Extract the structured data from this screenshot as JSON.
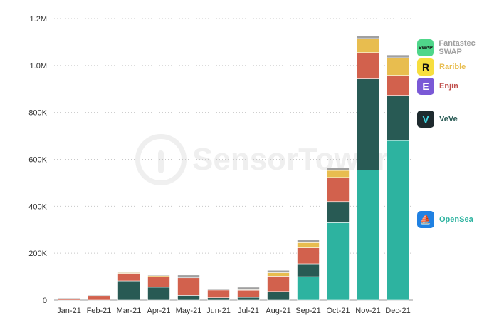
{
  "watermark": "SensorTower",
  "chart_data": {
    "type": "bar",
    "stacked": true,
    "categories": [
      "Jan-21",
      "Feb-21",
      "Mar-21",
      "Apr-21",
      "May-21",
      "Jun-21",
      "Jul-21",
      "Aug-21",
      "Sep-21",
      "Oct-21",
      "Nov-21",
      "Dec-21"
    ],
    "ylim": [
      0,
      1200000
    ],
    "yticks": [
      0,
      200000,
      400000,
      600000,
      800000,
      1000000,
      1200000
    ],
    "ytick_labels": [
      "0",
      "200K",
      "400K",
      "600K",
      "800K",
      "1.0M",
      "1.2M"
    ],
    "grid": true,
    "legend_position": "right",
    "series": [
      {
        "name": "OpenSea",
        "color": "#2db3a0",
        "icon": "opensea-icon",
        "values": [
          0,
          0,
          0,
          0,
          0,
          0,
          0,
          0,
          100000,
          330000,
          555000,
          680000
        ]
      },
      {
        "name": "VeVe",
        "color": "#285a54",
        "icon": "veve-icon",
        "values": [
          0,
          0,
          82000,
          55000,
          20000,
          10000,
          12000,
          37000,
          55000,
          90000,
          388000,
          193000
        ]
      },
      {
        "name": "Enjin",
        "color": "#d2614d",
        "icon": "enjin-icon",
        "values": [
          8000,
          20000,
          32000,
          45000,
          75000,
          33000,
          30000,
          65000,
          68000,
          103000,
          112000,
          85000
        ]
      },
      {
        "name": "Rarible",
        "color": "#e8bd4f",
        "icon": "rarible-icon",
        "values": [
          0,
          0,
          4000,
          4000,
          0,
          0,
          5000,
          15000,
          22000,
          30000,
          60000,
          75000
        ]
      },
      {
        "name": "Fantastec SWAP",
        "color": "#a0a0a0",
        "icon": "swap-icon",
        "values": [
          2000,
          2000,
          2000,
          5000,
          12000,
          5000,
          8000,
          10000,
          12000,
          10000,
          10000,
          12000
        ]
      }
    ]
  },
  "legend": [
    {
      "label": "Fantastec SWAP",
      "color": "#a0a0a0",
      "icon_text": "SWAP",
      "icon_bg": "#4fd68a",
      "icon_name": "swap-icon"
    },
    {
      "label": "Rarible",
      "color": "#e8bd4f",
      "icon_text": "R",
      "icon_bg": "#f7de3e",
      "icon_name": "rarible-icon"
    },
    {
      "label": "Enjin",
      "color": "#c0504d",
      "icon_text": "E",
      "icon_bg": "#7a59d6",
      "icon_name": "enjin-icon"
    },
    {
      "label": "VeVe",
      "color": "#285a54",
      "icon_text": "V",
      "icon_bg": "#1e2a2e",
      "icon_name": "veve-icon"
    },
    {
      "label": "OpenSea",
      "color": "#2db3a0",
      "icon_text": "⛵",
      "icon_bg": "#2081e2",
      "icon_name": "opensea-icon"
    }
  ]
}
